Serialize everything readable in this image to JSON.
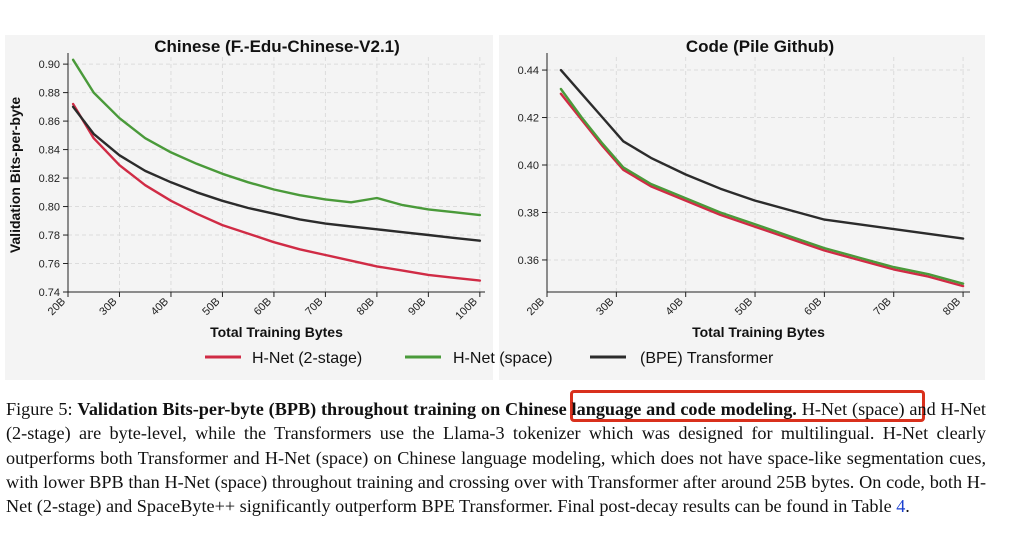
{
  "chart_data": [
    {
      "type": "line",
      "title": "Chinese (F.-Edu-Chinese-V2.1)",
      "xlabel": "Total Training Bytes",
      "ylabel": "Validation Bits-per-byte",
      "x_ticks": [
        "20B",
        "30B",
        "40B",
        "50B",
        "60B",
        "70B",
        "80B",
        "90B",
        "100B"
      ],
      "y_ticks": [
        "0.74",
        "0.76",
        "0.78",
        "0.80",
        "0.82",
        "0.84",
        "0.86",
        "0.88",
        "0.90"
      ],
      "xlim": [
        20,
        101
      ],
      "ylim": [
        0.74,
        0.905
      ],
      "grid": true,
      "x": [
        21,
        25,
        30,
        35,
        40,
        45,
        50,
        55,
        60,
        65,
        70,
        75,
        80,
        85,
        90,
        95,
        100
      ],
      "series": [
        {
          "name": "H-Net (2-stage)",
          "color": "#d02b45",
          "values": [
            0.872,
            0.848,
            0.829,
            0.815,
            0.804,
            0.795,
            0.787,
            0.781,
            0.775,
            0.77,
            0.766,
            0.762,
            0.758,
            0.755,
            0.752,
            0.75,
            0.748
          ]
        },
        {
          "name": "H-Net (space)",
          "color": "#4a9a3a",
          "values": [
            0.903,
            0.88,
            0.862,
            0.848,
            0.838,
            0.83,
            0.823,
            0.817,
            0.812,
            0.808,
            0.805,
            0.803,
            0.806,
            0.801,
            0.798,
            0.796,
            0.794
          ]
        },
        {
          "name": "(BPE) Transformer",
          "color": "#2b2b2b",
          "values": [
            0.87,
            0.851,
            0.836,
            0.825,
            0.817,
            0.81,
            0.804,
            0.799,
            0.795,
            0.791,
            0.788,
            0.786,
            0.784,
            0.782,
            0.78,
            0.778,
            0.776
          ]
        }
      ]
    },
    {
      "type": "line",
      "title": "Code (Pile Github)",
      "xlabel": "Total Training Bytes",
      "ylabel": "",
      "x_ticks": [
        "20B",
        "30B",
        "40B",
        "50B",
        "60B",
        "70B",
        "80B"
      ],
      "y_ticks": [
        "0.36",
        "0.38",
        "0.40",
        "0.42",
        "0.44"
      ],
      "xlim": [
        20,
        81
      ],
      "ylim": [
        0.3465,
        0.4455
      ],
      "grid": true,
      "x": [
        22,
        25,
        28,
        31,
        35,
        40,
        45,
        50,
        55,
        60,
        65,
        70,
        75,
        80
      ],
      "series": [
        {
          "name": "H-Net (2-stage)",
          "color": "#d02b45",
          "values": [
            0.43,
            0.419,
            0.408,
            0.398,
            0.391,
            0.385,
            0.379,
            0.374,
            0.369,
            0.364,
            0.36,
            0.356,
            0.353,
            0.349
          ]
        },
        {
          "name": "H-Net (space)",
          "color": "#4a9a3a",
          "values": [
            0.432,
            0.42,
            0.409,
            0.399,
            0.392,
            0.386,
            0.38,
            0.375,
            0.37,
            0.365,
            0.361,
            0.357,
            0.354,
            0.35
          ]
        },
        {
          "name": "(BPE) Transformer",
          "color": "#2b2b2b",
          "values": [
            0.44,
            0.43,
            0.42,
            0.41,
            0.403,
            0.396,
            0.39,
            0.385,
            0.381,
            0.377,
            0.375,
            0.373,
            0.371,
            0.369
          ]
        }
      ]
    }
  ],
  "legend": {
    "placement": "bottom-center",
    "items": [
      {
        "label": "H-Net (2-stage)",
        "color": "#d02b45"
      },
      {
        "label": "H-Net (space)",
        "color": "#4a9a3a"
      },
      {
        "label": "(BPE) Transformer",
        "color": "#2b2b2b"
      }
    ]
  },
  "caption": {
    "prefix": "Figure 5: ",
    "bold": "Validation Bits-per-byte (BPB) throughout training on Chinese language and code modeling.",
    "body": " H-Net (space) and H-Net (2-stage) are byte-level, while the Transformers use the Llama-3 tokenizer which was designed for multilingual. H-Net clearly outperforms both Transformer and H-Net (space) on Chinese language modeling, which does not have space-like segmentation cues, with lower BPB than H-Net (space) throughout training and crossing over with Transformer after around 25B bytes. On code, both H-Net (2-stage) and SpaceByte++ significantly outperform BPE Transformer. Final post-decay results can be found in Table ",
    "ref": "4",
    "end": "."
  },
  "highlight_color": "#d9301c"
}
